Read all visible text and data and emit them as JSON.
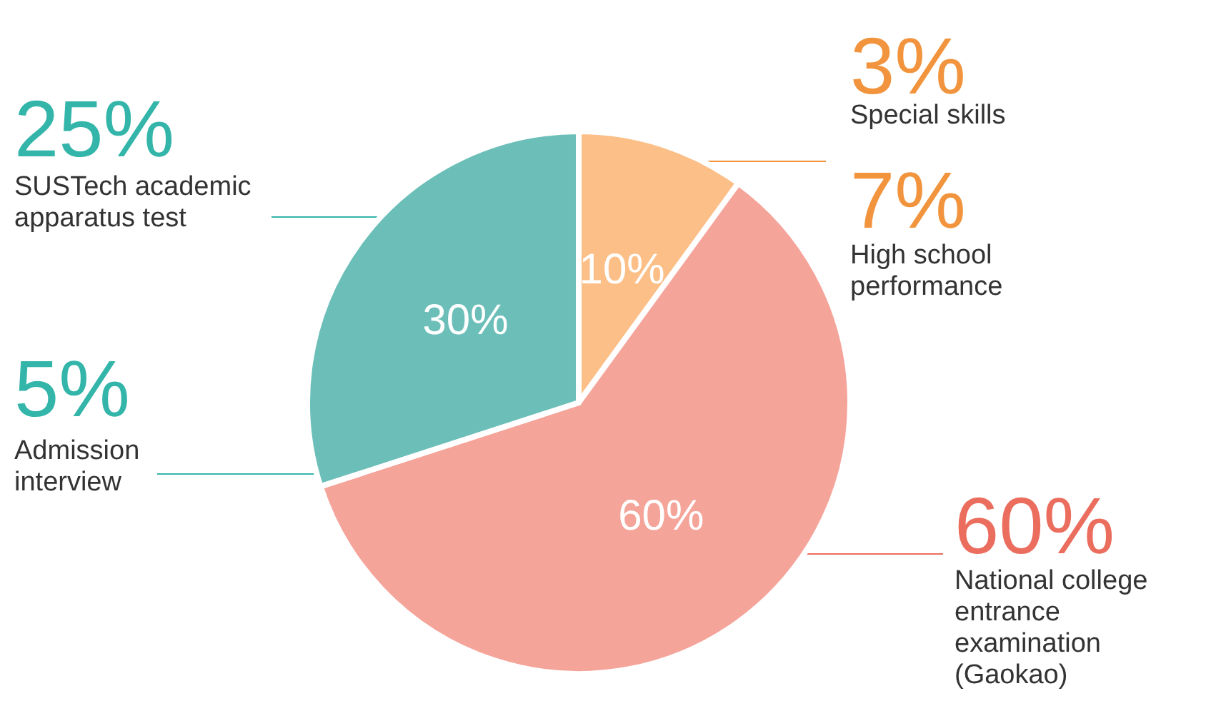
{
  "chart_data": {
    "type": "pie",
    "categories": [
      null,
      null,
      null
    ],
    "values": [
      10,
      60,
      30
    ],
    "colors": [
      "#fbbf87",
      "#f5a49a",
      "#6bbfb8"
    ],
    "value_labels": [
      "10%",
      "60%",
      "30%"
    ],
    "annotations": [
      "3%",
      "Special skills",
      "7%",
      "High school performance",
      "60%",
      "National college entrance examination (Gaokao)",
      "25%",
      "SUSTech academic apparatus test",
      "5%",
      "Admission interview"
    ]
  }
}
